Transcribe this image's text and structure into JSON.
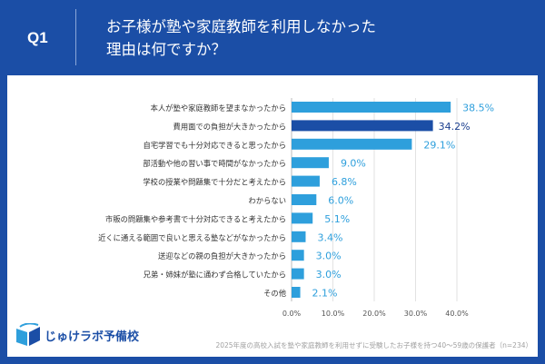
{
  "header": {
    "question": "Q1",
    "title_line1": "お子様が塾や家庭教師を利用しなかった",
    "title_line2": "理由は何ですか？"
  },
  "footer": {
    "logo_text": "じゅけラボ予備校",
    "source": "2025年度の高校入試を塾や家庭教師を利用せずに受験したお子様を持つ40～59歳の保護者（n=234）"
  },
  "colors": {
    "background": "#1b4ea6",
    "bar": "#2e9fdc",
    "bar_highlight": "#1b4ea6",
    "label": "#2e9fdc",
    "label_highlight": "#1b3f8f"
  },
  "chart_data": {
    "type": "bar",
    "orientation": "horizontal",
    "categories": [
      "本人が塾や家庭教師を望まなかったから",
      "費用面での負担が大きかったから",
      "自宅学習でも十分対応できると思ったから",
      "部活動や他の習い事で時間がなかったから",
      "学校の授業や問題集で十分だと考えたから",
      "わからない",
      "市販の問題集や参考書で十分対応できると考えたから",
      "近くに通える範囲で良いと思える塾などがなかったから",
      "送迎などの親の負担が大きかったから",
      "兄弟・姉妹が塾に通わず合格していたから",
      "その他"
    ],
    "values": [
      38.5,
      34.2,
      29.1,
      9.0,
      6.8,
      6.0,
      5.1,
      3.4,
      3.0,
      3.0,
      2.1
    ],
    "value_labels": [
      "38.5%",
      "34.2%",
      "29.1%",
      "9.0%",
      "6.8%",
      "6.0%",
      "5.1%",
      "3.4%",
      "3.0%",
      "3.0%",
      "2.1%"
    ],
    "highlight_index": 1,
    "xlim": [
      0,
      40
    ],
    "xticks": [
      "0.0%",
      "10.0%",
      "20.0%",
      "30.0%",
      "40.0%"
    ],
    "grid": true
  }
}
